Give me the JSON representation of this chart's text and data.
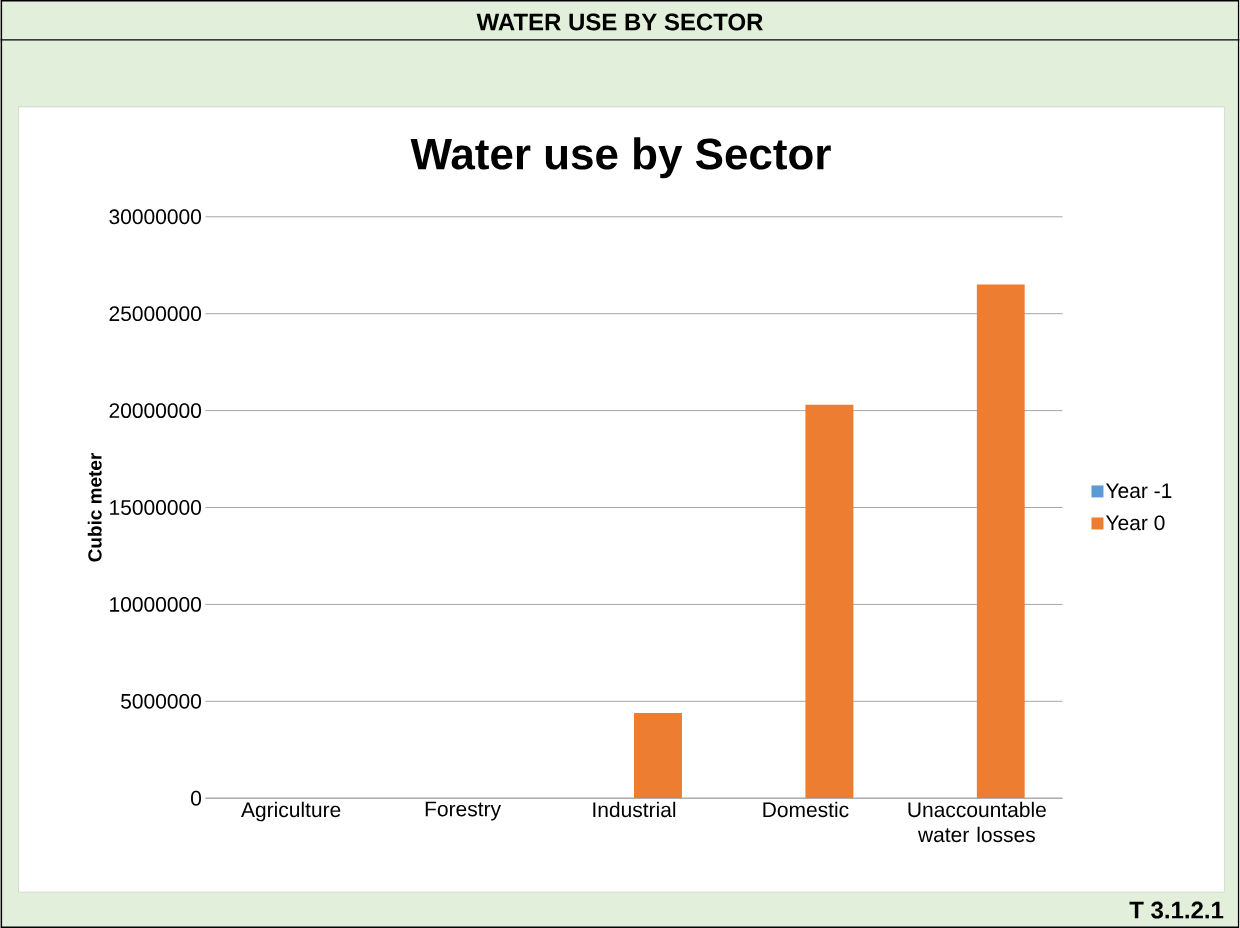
{
  "chart_data": {
    "type": "bar",
    "title": "Water use by Sector",
    "ylabel": "Cubic meter",
    "annotations": [
      "WATER USE BY SECTOR",
      "T 3.1.2.1"
    ],
    "categories": [
      "Agriculture",
      "Forestry",
      "Industrial",
      "Domestic",
      "Unaccountable water losses"
    ],
    "series": [
      {
        "name": "Year -1",
        "color": "#5b9bd5",
        "values": [
          0,
          0,
          0,
          0,
          0
        ]
      },
      {
        "name": "Year 0",
        "color": "#ed7d31",
        "values": [
          0,
          0,
          4400000,
          20300000,
          26500000
        ]
      }
    ],
    "ylim": [
      0,
      30000000
    ],
    "yticks": [
      0,
      5000000,
      10000000,
      15000000,
      20000000,
      25000000,
      30000000
    ],
    "grid": "y",
    "legend": "right"
  }
}
